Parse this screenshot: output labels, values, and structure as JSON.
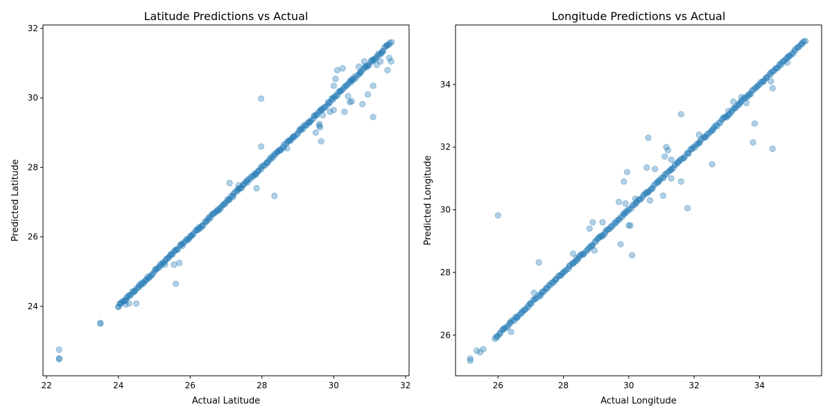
{
  "chart_data": [
    {
      "type": "scatter",
      "title": "Latitude Predictions vs Actual",
      "xlabel": "Actual Latitude",
      "ylabel": "Predicted Latitude",
      "xlim": [
        21.9,
        32.1
      ],
      "ylim": [
        22.0,
        32.1
      ],
      "xticks": [
        22,
        24,
        26,
        28,
        30,
        32
      ],
      "yticks": [
        24,
        26,
        28,
        30,
        32
      ],
      "grid": false,
      "color": "#1f77b4",
      "opacity": 0.35,
      "outliers": [
        [
          22.35,
          22.75
        ],
        [
          22.35,
          22.48
        ],
        [
          22.35,
          22.5
        ],
        [
          23.5,
          23.5
        ],
        [
          23.5,
          23.52
        ],
        [
          24.0,
          23.98
        ],
        [
          24.3,
          24.08
        ],
        [
          24.5,
          24.08
        ],
        [
          24.2,
          24.05
        ],
        [
          25.3,
          25.2
        ],
        [
          25.55,
          25.2
        ],
        [
          25.7,
          25.25
        ],
        [
          25.6,
          24.65
        ],
        [
          27.1,
          27.55
        ],
        [
          27.35,
          27.48
        ],
        [
          27.85,
          27.4
        ],
        [
          28.35,
          27.18
        ],
        [
          27.98,
          28.6
        ],
        [
          27.98,
          29.98
        ],
        [
          28.7,
          28.55
        ],
        [
          29.5,
          29.0
        ],
        [
          29.6,
          29.25
        ],
        [
          29.65,
          28.75
        ],
        [
          29.6,
          29.2
        ],
        [
          29.62,
          29.15
        ],
        [
          29.7,
          29.5
        ],
        [
          29.9,
          29.6
        ],
        [
          30.0,
          29.65
        ],
        [
          30.3,
          29.6
        ],
        [
          30.45,
          29.88
        ],
        [
          30.5,
          29.9
        ],
        [
          30.8,
          29.82
        ],
        [
          30.95,
          30.1
        ],
        [
          31.1,
          30.35
        ],
        [
          31.1,
          29.45
        ],
        [
          31.5,
          30.8
        ],
        [
          30.1,
          30.8
        ],
        [
          30.25,
          30.85
        ],
        [
          30.05,
          30.55
        ],
        [
          30.0,
          30.35
        ],
        [
          30.7,
          30.9
        ],
        [
          30.85,
          31.05
        ],
        [
          31.6,
          31.05
        ],
        [
          31.55,
          31.15
        ],
        [
          31.3,
          31.05
        ],
        [
          30.4,
          30.05
        ],
        [
          31.2,
          30.95
        ]
      ]
    },
    {
      "type": "scatter",
      "title": "Longitude Predictions vs Actual",
      "xlabel": "Actual Longitude",
      "ylabel": "Predicted Longitude",
      "xlim": [
        24.7,
        35.9
      ],
      "ylim": [
        24.7,
        35.9
      ],
      "xticks": [
        26,
        28,
        30,
        32,
        34
      ],
      "yticks": [
        26,
        28,
        30,
        32,
        34
      ],
      "grid": false,
      "color": "#1f77b4",
      "opacity": 0.35,
      "outliers": [
        [
          25.15,
          25.25
        ],
        [
          25.15,
          25.18
        ],
        [
          25.35,
          25.5
        ],
        [
          25.45,
          25.45
        ],
        [
          25.55,
          25.55
        ],
        [
          26.0,
          29.82
        ],
        [
          26.4,
          26.1
        ],
        [
          27.25,
          28.32
        ],
        [
          27.1,
          27.35
        ],
        [
          28.3,
          28.6
        ],
        [
          28.4,
          28.45
        ],
        [
          28.8,
          29.4
        ],
        [
          28.9,
          29.6
        ],
        [
          28.95,
          28.7
        ],
        [
          29.2,
          29.6
        ],
        [
          29.7,
          30.25
        ],
        [
          29.75,
          28.9
        ],
        [
          29.85,
          30.9
        ],
        [
          29.9,
          30.2
        ],
        [
          29.95,
          31.2
        ],
        [
          30.0,
          29.5
        ],
        [
          30.05,
          29.5
        ],
        [
          30.1,
          28.55
        ],
        [
          30.2,
          30.35
        ],
        [
          30.55,
          31.35
        ],
        [
          30.6,
          32.3
        ],
        [
          30.65,
          30.3
        ],
        [
          30.8,
          31.3
        ],
        [
          31.05,
          30.45
        ],
        [
          31.1,
          31.7
        ],
        [
          31.15,
          32.0
        ],
        [
          31.2,
          31.9
        ],
        [
          31.3,
          31.0
        ],
        [
          31.3,
          31.6
        ],
        [
          31.6,
          33.05
        ],
        [
          31.6,
          30.9
        ],
        [
          31.8,
          30.05
        ],
        [
          32.15,
          32.4
        ],
        [
          32.55,
          31.45
        ],
        [
          33.05,
          33.15
        ],
        [
          33.2,
          33.45
        ],
        [
          33.45,
          33.6
        ],
        [
          33.6,
          33.4
        ],
        [
          33.8,
          32.15
        ],
        [
          33.85,
          32.75
        ],
        [
          34.4,
          31.95
        ],
        [
          34.4,
          33.88
        ],
        [
          34.35,
          34.1
        ],
        [
          34.85,
          34.7
        ]
      ]
    }
  ]
}
